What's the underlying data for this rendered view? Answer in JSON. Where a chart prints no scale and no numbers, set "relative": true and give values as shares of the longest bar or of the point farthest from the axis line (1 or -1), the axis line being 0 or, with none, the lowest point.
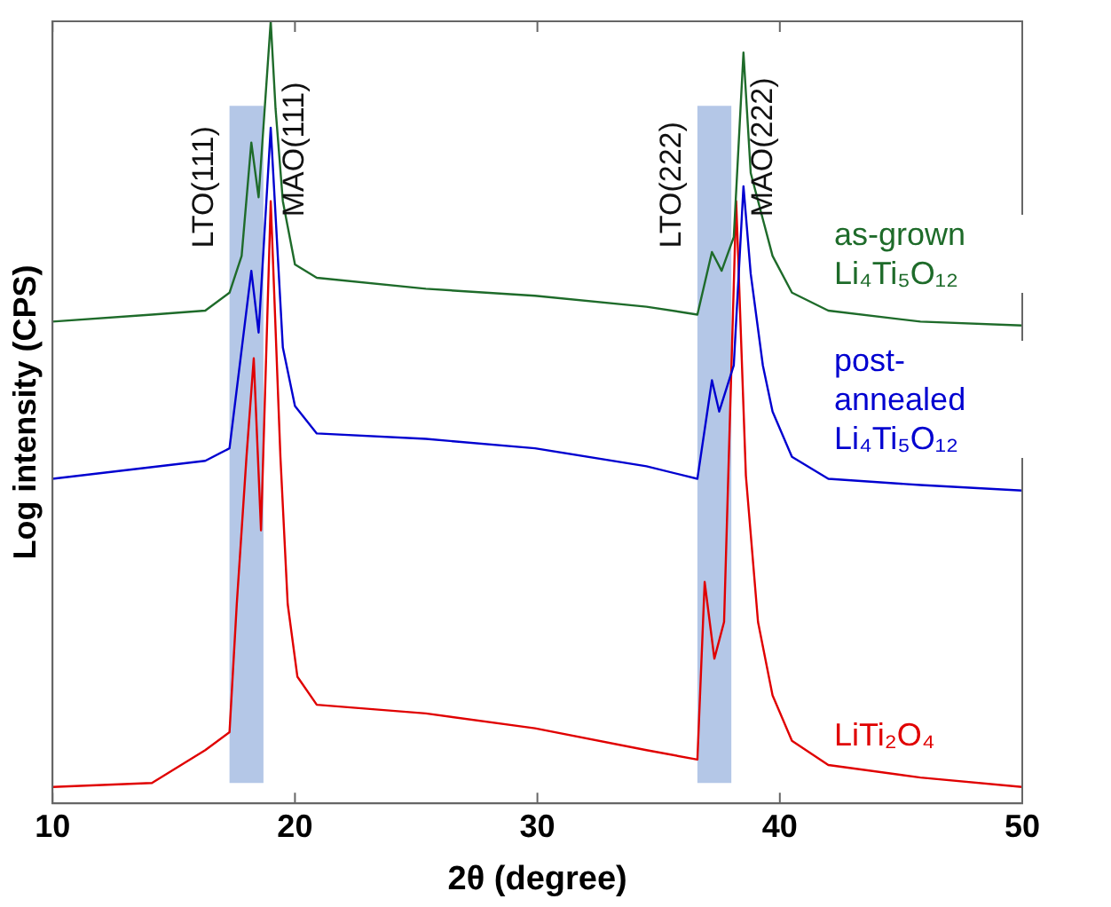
{
  "chart_data": {
    "type": "line",
    "relative": true,
    "xlabel": "2θ (degree)",
    "ylabel": "Log intensity (CPS)",
    "xlim": [
      10,
      50
    ],
    "xticks": [
      10,
      20,
      30,
      40,
      50
    ],
    "grid": false,
    "legend": false,
    "marker": "none",
    "line_style": "solid",
    "series": [
      {
        "name": "as-grown Li₄Ti₅O₁₂",
        "color": "#1e6b2a",
        "x": [
          10,
          14.1,
          16.3,
          17.3,
          17.8,
          18.2,
          18.5,
          19.0,
          19.2,
          19.5,
          20.0,
          20.9,
          25.4,
          29.9,
          34.5,
          36.6,
          37.2,
          37.6,
          38.1,
          38.5,
          38.8,
          39.3,
          39.7,
          40.5,
          42.0,
          45.8,
          50
        ],
        "values": [
          0.616,
          0.625,
          0.63,
          0.653,
          0.7,
          0.845,
          0.775,
          1.0,
          0.888,
          0.77,
          0.689,
          0.672,
          0.658,
          0.649,
          0.635,
          0.625,
          0.705,
          0.681,
          0.724,
          0.96,
          0.806,
          0.747,
          0.7,
          0.653,
          0.63,
          0.616,
          0.611
        ]
      },
      {
        "name": "post-annealed Li₄Ti₅O₁₂",
        "color": "#0000d0",
        "x": [
          10,
          16.3,
          17.3,
          18.2,
          18.5,
          19.0,
          19.5,
          20.0,
          20.9,
          25.4,
          29.9,
          34.5,
          36.6,
          37.2,
          37.5,
          38.1,
          38.5,
          38.8,
          39.3,
          39.7,
          40.5,
          42.0,
          45.8,
          50
        ],
        "values": [
          0.415,
          0.438,
          0.454,
          0.681,
          0.602,
          0.864,
          0.583,
          0.508,
          0.473,
          0.466,
          0.454,
          0.431,
          0.415,
          0.541,
          0.501,
          0.56,
          0.789,
          0.677,
          0.56,
          0.501,
          0.443,
          0.415,
          0.407,
          0.4
        ]
      },
      {
        "name": "LiTi₂O₄",
        "color": "#e00000",
        "x": [
          10,
          14.1,
          16.3,
          17.3,
          17.6,
          18.0,
          18.3,
          18.6,
          19.0,
          19.4,
          19.7,
          20.1,
          20.9,
          25.4,
          29.9,
          34.5,
          36.6,
          36.9,
          37.3,
          37.7,
          38.2,
          38.6,
          39.1,
          39.7,
          40.5,
          42.0,
          45.8,
          50
        ],
        "values": [
          0.021,
          0.026,
          0.068,
          0.091,
          0.255,
          0.443,
          0.569,
          0.349,
          0.77,
          0.443,
          0.255,
          0.162,
          0.126,
          0.115,
          0.096,
          0.068,
          0.056,
          0.283,
          0.185,
          0.232,
          0.77,
          0.419,
          0.232,
          0.138,
          0.08,
          0.049,
          0.033,
          0.021
        ]
      }
    ],
    "bands": [
      {
        "axis": "x",
        "from": 17.3,
        "to": 18.7,
        "color": "#b4c7e7"
      },
      {
        "axis": "x",
        "from": 36.6,
        "to": 38.0,
        "color": "#b4c7e7"
      }
    ],
    "annotations": [
      "LTO(111)",
      "MAO(111)",
      "LTO(222)",
      "MAO(222)"
    ]
  }
}
